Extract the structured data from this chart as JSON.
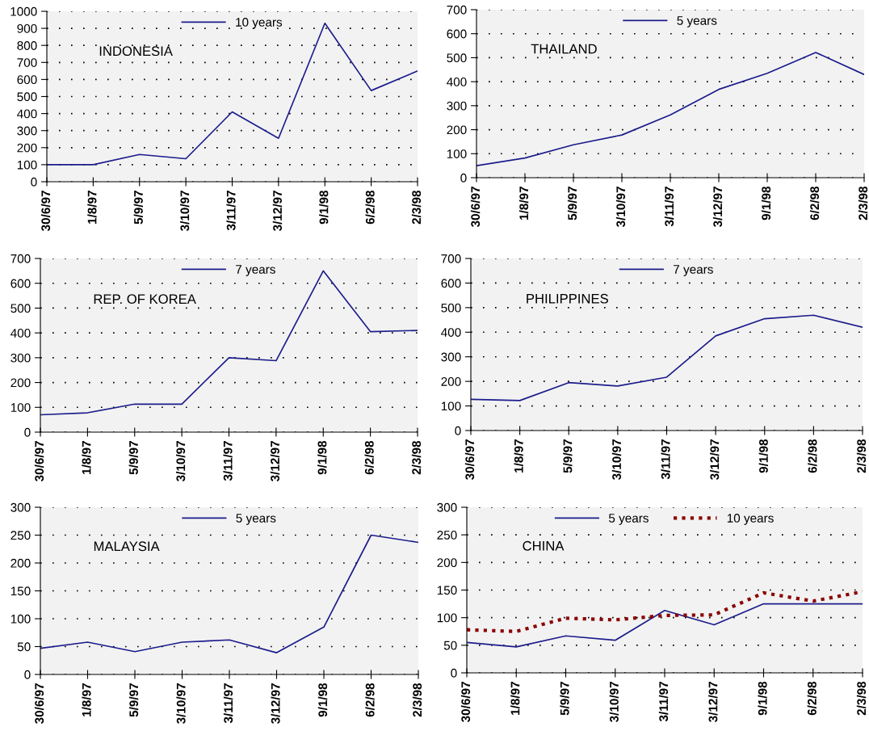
{
  "chart_data": [
    {
      "type": "line",
      "title": "INDONESIA",
      "categories": [
        "30/6/97",
        "1/8/97",
        "5/9/97",
        "3/10/97",
        "3/11/97",
        "3/12/97",
        "9/1/98",
        "6/2/98",
        "2/3/98"
      ],
      "series": [
        {
          "name": "10 years",
          "color": "#1c1c8c",
          "values": [
            100,
            100,
            160,
            135,
            410,
            255,
            930,
            535,
            650
          ]
        }
      ],
      "ylim": [
        0,
        1000
      ],
      "yticks": [
        0,
        100,
        200,
        300,
        400,
        500,
        600,
        700,
        800,
        900,
        1000
      ],
      "grid": "y",
      "legend": "top",
      "line_style": "solid",
      "marker": "none"
    },
    {
      "type": "line",
      "title": "THAILAND",
      "categories": [
        "30/6/97",
        "1/8/97",
        "5/9/97",
        "3/10/97",
        "3/11/97",
        "3/12/97",
        "9/1/98",
        "6/2/98",
        "2/3/98"
      ],
      "series": [
        {
          "name": "5 years",
          "color": "#1c1c8c",
          "values": [
            50,
            82,
            137,
            178,
            262,
            368,
            435,
            522,
            430
          ]
        }
      ],
      "ylim": [
        0,
        700
      ],
      "yticks": [
        0,
        100,
        200,
        300,
        400,
        500,
        600,
        700
      ],
      "grid": "y",
      "legend": "top",
      "line_style": "solid",
      "marker": "none"
    },
    {
      "type": "line",
      "title": "REP. OF KOREA",
      "categories": [
        "30/6/97",
        "1/8/97",
        "5/9/97",
        "3/10/97",
        "3/11/97",
        "3/12/97",
        "9/1/98",
        "6/2/98",
        "2/3/98"
      ],
      "series": [
        {
          "name": "7 years",
          "color": "#1c1c8c",
          "values": [
            70,
            78,
            113,
            113,
            300,
            288,
            650,
            405,
            410
          ]
        }
      ],
      "ylim": [
        0,
        700
      ],
      "yticks": [
        0,
        100,
        200,
        300,
        400,
        500,
        600,
        700
      ],
      "grid": "y",
      "legend": "top",
      "line_style": "solid",
      "marker": "none"
    },
    {
      "type": "line",
      "title": "PHILIPPINES",
      "categories": [
        "30/6/97",
        "1/8/97",
        "5/9/97",
        "3/10/97",
        "3/11/97",
        "3/12/97",
        "9/1/98",
        "6/2/98",
        "2/3/98"
      ],
      "series": [
        {
          "name": "7 years",
          "color": "#1c1c8c",
          "values": [
            127,
            122,
            195,
            181,
            217,
            385,
            455,
            469,
            420
          ]
        }
      ],
      "ylim": [
        0,
        700
      ],
      "yticks": [
        0,
        100,
        200,
        300,
        400,
        500,
        600,
        700
      ],
      "grid": "y",
      "legend": "top",
      "line_style": "solid",
      "marker": "none"
    },
    {
      "type": "line",
      "title": "MALAYSIA",
      "categories": [
        "30/6/97",
        "1/8/97",
        "5/9/97",
        "3/10/97",
        "3/11/97",
        "3/12/97",
        "9/1/98",
        "6/2/98",
        "2/3/98"
      ],
      "series": [
        {
          "name": "5 years",
          "color": "#1c1c8c",
          "values": [
            47,
            58,
            41,
            58,
            62,
            39,
            85,
            250,
            237
          ]
        }
      ],
      "ylim": [
        0,
        300
      ],
      "yticks": [
        0,
        50,
        100,
        150,
        200,
        250,
        300
      ],
      "grid": "y",
      "legend": "top",
      "line_style": "solid",
      "marker": "none"
    },
    {
      "type": "line",
      "title": "CHINA",
      "categories": [
        "30/6/97",
        "1/8/97",
        "5/9/97",
        "3/10/97",
        "3/11/97",
        "3/12/97",
        "9/1/98",
        "6/2/98",
        "2/3/98"
      ],
      "series": [
        {
          "name": "5 years",
          "color": "#1c1c8c",
          "values": [
            55,
            47,
            67,
            59,
            113,
            87,
            125,
            125,
            125
          ]
        },
        {
          "name": "10 years",
          "color": "#8b0000",
          "line_style": "dotted",
          "values": [
            78,
            75,
            99,
            96,
            104,
            105,
            145,
            130,
            147
          ]
        }
      ],
      "ylim": [
        0,
        300
      ],
      "yticks": [
        0,
        50,
        100,
        150,
        200,
        250,
        300
      ],
      "grid": "y",
      "legend": "top",
      "line_style": "solid",
      "marker": "none"
    }
  ]
}
